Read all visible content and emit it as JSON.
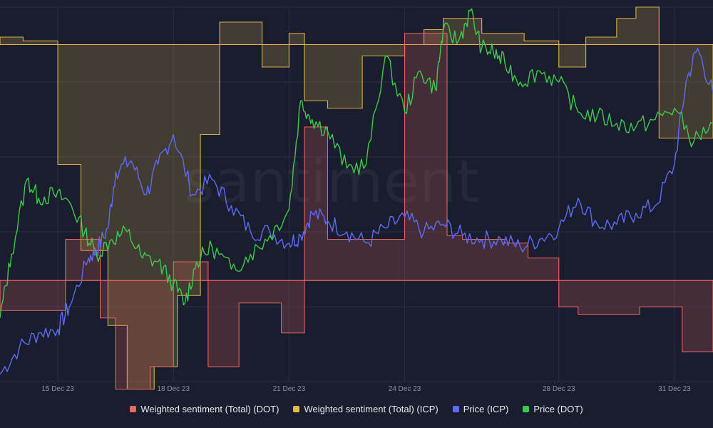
{
  "brand": {
    "watermark": "santiment"
  },
  "colors": {
    "background": "#1a1d2e",
    "grid": "#2a2e40",
    "tick_text": "#8c90a0",
    "dot_sentiment": "#f06765",
    "icp_sentiment": "#e6b84a",
    "icp_price": "#5c6cf5",
    "dot_price": "#3ec94e"
  },
  "chart_data": {
    "type": "line",
    "x_ticks": [
      "15 Dec 23",
      "18 Dec 23",
      "21 Dec 23",
      "24 Dec 23",
      "28 Dec 23",
      "31 Dec 23"
    ],
    "x_tick_days": [
      15,
      18,
      21,
      24,
      28,
      31
    ],
    "x_range": [
      13.5,
      32.0
    ],
    "y_range": [
      0,
      1
    ],
    "grid": true,
    "legend_position": "bottom",
    "series": [
      {
        "name": "Weighted sentiment (Total) (DOT)",
        "kind": "step-area",
        "baseline": 0.27,
        "x": [
          13.5,
          14.6,
          15.2,
          16.1,
          16.5,
          17.4,
          18.0,
          18.9,
          19.7,
          20.8,
          21.4,
          22.0,
          23.0,
          24.0,
          25.1,
          25.5,
          26.2,
          26.6,
          27.2,
          28.0,
          28.5,
          29.0,
          30.1,
          30.3,
          31.2,
          32.0
        ],
        "values": [
          0.19,
          0.19,
          0.38,
          0.17,
          -0.02,
          0.04,
          0.32,
          0.04,
          0.21,
          0.13,
          0.68,
          0.38,
          0.38,
          0.93,
          0.39,
          0.38,
          0.38,
          0.37,
          0.33,
          0.2,
          0.18,
          0.18,
          0.2,
          0.2,
          0.08,
          0.14
        ]
      },
      {
        "name": "Weighted sentiment (Total) (ICP)",
        "kind": "step-area",
        "baseline": 0.9,
        "x": [
          13.5,
          14.1,
          15.0,
          15.6,
          16.3,
          16.8,
          17.5,
          18.1,
          18.7,
          19.2,
          20.3,
          21.0,
          21.4,
          22.0,
          22.9,
          24.0,
          24.5,
          25.0,
          26.0,
          27.1,
          28.0,
          28.7,
          29.5,
          30.0,
          30.6,
          32.0
        ],
        "values": [
          0.92,
          0.91,
          0.58,
          0.35,
          0.15,
          -0.02,
          0.04,
          0.23,
          0.66,
          0.96,
          0.84,
          0.93,
          0.75,
          0.73,
          0.87,
          0.9,
          0.94,
          0.97,
          0.93,
          0.91,
          0.84,
          0.92,
          0.97,
          1.0,
          0.65,
          0.65
        ]
      },
      {
        "name": "Price (ICP)",
        "kind": "line",
        "x": [
          13.5,
          14.0,
          14.5,
          15.0,
          15.3,
          15.8,
          16.0,
          16.3,
          16.5,
          16.9,
          17.3,
          17.6,
          18.0,
          18.5,
          19.0,
          19.5,
          20.0,
          20.5,
          21.0,
          21.3,
          21.6,
          22.0,
          22.5,
          23.0,
          23.5,
          24.0,
          24.5,
          25.0,
          25.5,
          26.0,
          26.5,
          27.0,
          27.5,
          28.0,
          28.5,
          29.0,
          29.5,
          30.0,
          30.5,
          31.0,
          31.3,
          31.6,
          32.0
        ],
        "values": [
          0.02,
          0.09,
          0.13,
          0.14,
          0.2,
          0.33,
          0.35,
          0.41,
          0.56,
          0.59,
          0.5,
          0.58,
          0.66,
          0.5,
          0.54,
          0.47,
          0.4,
          0.4,
          0.37,
          0.39,
          0.45,
          0.43,
          0.4,
          0.37,
          0.41,
          0.44,
          0.4,
          0.42,
          0.39,
          0.38,
          0.38,
          0.36,
          0.38,
          0.41,
          0.49,
          0.42,
          0.42,
          0.45,
          0.47,
          0.58,
          0.8,
          0.89,
          0.77
        ]
      },
      {
        "name": "Price (DOT)",
        "kind": "line",
        "x": [
          13.5,
          13.8,
          14.2,
          14.5,
          14.9,
          15.3,
          15.7,
          16.0,
          16.4,
          16.8,
          17.2,
          17.6,
          18.0,
          18.3,
          18.6,
          19.0,
          19.5,
          20.0,
          20.5,
          21.0,
          21.3,
          21.6,
          22.0,
          22.5,
          23.0,
          23.5,
          24.0,
          24.4,
          24.8,
          25.0,
          25.4,
          25.7,
          26.0,
          26.3,
          26.6,
          27.0,
          27.5,
          28.0,
          28.5,
          29.0,
          29.5,
          30.0,
          30.5,
          31.0,
          31.5,
          32.0
        ],
        "values": [
          0.17,
          0.34,
          0.54,
          0.49,
          0.5,
          0.48,
          0.4,
          0.34,
          0.38,
          0.4,
          0.33,
          0.32,
          0.26,
          0.21,
          0.32,
          0.36,
          0.3,
          0.34,
          0.39,
          0.46,
          0.75,
          0.7,
          0.67,
          0.57,
          0.58,
          0.87,
          0.72,
          0.83,
          0.78,
          0.94,
          0.91,
          0.99,
          0.89,
          0.88,
          0.85,
          0.8,
          0.83,
          0.8,
          0.72,
          0.71,
          0.69,
          0.68,
          0.7,
          0.73,
          0.64,
          0.69
        ]
      }
    ]
  }
}
